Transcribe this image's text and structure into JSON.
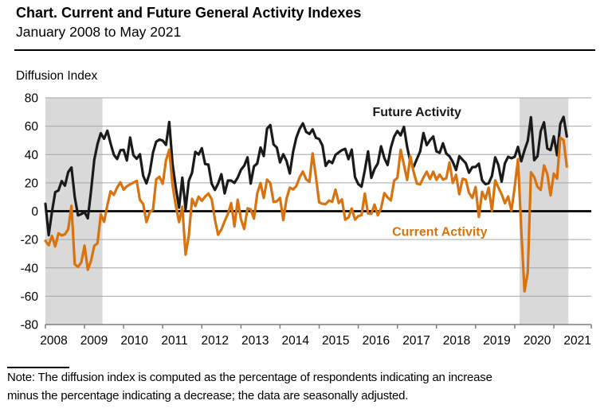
{
  "header": {
    "title": "Chart. Current and Future General Activity Indexes",
    "subtitle": "January 2008 to May 2021"
  },
  "note": {
    "line1": "Note: The diffusion index is computed as the percentage of respondents indicating an increase",
    "line2": "minus the percentage indicating a decrease; the data are seasonally adjusted."
  },
  "chart_data": {
    "type": "line",
    "title": "Current and Future General Activity Indexes",
    "ylabel": "Diffusion Index",
    "ylim": [
      -80,
      80
    ],
    "ytick_values": [
      80,
      60,
      40,
      20,
      0,
      -20,
      -40,
      -60,
      -80
    ],
    "year_labels": [
      "2008",
      "2009",
      "2010",
      "2011",
      "2012",
      "2013",
      "2014",
      "2015",
      "2016",
      "2017",
      "2018",
      "2019",
      "2020",
      "2021"
    ],
    "x_start": "2008-01",
    "x_frequency": "monthly",
    "x_axis_total_months": 167.5,
    "grid": "horizontal",
    "legend_position": "inline-annotations",
    "recession_bands_month_index": [
      [
        0,
        17.5
      ],
      [
        145.5,
        160.5
      ]
    ],
    "colors": {
      "band": "#d9d9d9",
      "grid": "#a6a6a6",
      "axis": "#7f7f7f",
      "zero_line": "#000000",
      "future": "#1a1a1a",
      "current": "#d9730f"
    },
    "series": [
      {
        "name": "Future Activity",
        "color": "#1a1a1a",
        "values": [
          5.2,
          -16.9,
          -0.5,
          13.4,
          14.7,
          21.3,
          18.0,
          27.6,
          30.8,
          10.0,
          -3.0,
          -2.0,
          -0.7,
          -5.0,
          14.5,
          36.2,
          47.5,
          55.0,
          51.1,
          56.8,
          47.8,
          39.8,
          36.8,
          43.0,
          43.3,
          35.8,
          52.0,
          39.5,
          37.0,
          40.2,
          25.0,
          19.6,
          27.3,
          41.4,
          49.0,
          50.5,
          49.8,
          46.8,
          63.0,
          33.6,
          16.6,
          2.5,
          23.7,
          1.4,
          21.4,
          27.2,
          41.9,
          40.0,
          44.4,
          33.3,
          32.9,
          19.5,
          15.0,
          19.5,
          26.1,
          12.5,
          21.6,
          21.6,
          20.0,
          23.7,
          29.2,
          32.1,
          38.0,
          19.5,
          31.6,
          33.7,
          44.9,
          38.9,
          58.2,
          60.8,
          47.1,
          44.9,
          34.4,
          40.2,
          35.4,
          26.6,
          41.9,
          52.0,
          58.1,
          62.0,
          56.0,
          54.5,
          57.7,
          51.9,
          50.9,
          46.4,
          32.0,
          35.5,
          33.9,
          39.7,
          41.5,
          43.1,
          44.0,
          36.7,
          43.4,
          24.1,
          19.1,
          17.3,
          28.8,
          42.2,
          23.6,
          29.8,
          33.7,
          45.8,
          37.5,
          32.6,
          44.8,
          52.6,
          56.6,
          53.5,
          59.5,
          45.4,
          34.8,
          31.3,
          36.9,
          42.3,
          55.2,
          46.6,
          50.1,
          52.7,
          42.2,
          41.2,
          47.9,
          40.7,
          38.7,
          34.8,
          29.0,
          38.8,
          36.3,
          33.8,
          27.2,
          31.1,
          31.2,
          33.5,
          21.8,
          19.1,
          19.7,
          24.8,
          38.0,
          32.6,
          20.8,
          33.8,
          38.4,
          37.4,
          38.4,
          45.4,
          35.2,
          43.0,
          49.7,
          66.3,
          36.0,
          38.8,
          56.6,
          62.7,
          44.3,
          43.1,
          52.8,
          39.5,
          61.6,
          66.6,
          52.7
        ]
      },
      {
        "name": "Current Activity",
        "color": "#d9730f",
        "values": [
          -20.9,
          -24.0,
          -17.4,
          -24.9,
          -15.6,
          -17.1,
          -16.3,
          -12.7,
          3.8,
          -37.5,
          -39.3,
          -36.1,
          -24.3,
          -41.3,
          -35.0,
          -24.4,
          -22.6,
          -2.2,
          -7.5,
          4.2,
          14.1,
          11.5,
          16.7,
          20.4,
          15.2,
          17.6,
          18.9,
          20.2,
          21.4,
          8.0,
          5.1,
          -7.7,
          -0.7,
          1.0,
          22.5,
          24.3,
          19.3,
          35.9,
          43.4,
          18.5,
          3.9,
          -7.7,
          3.2,
          -30.7,
          -17.5,
          8.7,
          3.6,
          10.3,
          7.3,
          10.2,
          12.5,
          8.5,
          -5.8,
          -16.6,
          -12.9,
          -7.1,
          -1.9,
          5.7,
          -10.7,
          8.1,
          -5.8,
          -12.5,
          2.0,
          1.3,
          -5.2,
          12.5,
          19.8,
          9.3,
          22.3,
          19.8,
          6.5,
          7.0,
          9.4,
          -6.3,
          9.0,
          16.6,
          15.4,
          17.8,
          23.9,
          28.0,
          22.5,
          20.7,
          40.8,
          24.5,
          6.3,
          5.2,
          5.0,
          7.5,
          6.7,
          15.2,
          5.7,
          8.3,
          -6.0,
          -4.5,
          1.9,
          -5.9,
          -3.5,
          -2.8,
          12.4,
          -1.6,
          -1.8,
          4.7,
          -2.9,
          2.0,
          12.8,
          9.7,
          7.6,
          21.5,
          23.6,
          43.3,
          32.8,
          22.0,
          38.8,
          27.6,
          19.5,
          18.9,
          23.8,
          27.9,
          22.7,
          27.9,
          22.2,
          25.8,
          22.3,
          23.2,
          34.4,
          19.9,
          25.7,
          11.9,
          22.9,
          22.2,
          12.9,
          9.4,
          17.0,
          -4.1,
          13.7,
          8.5,
          16.6,
          0.3,
          21.8,
          16.8,
          12.0,
          5.6,
          10.4,
          0.3,
          17.0,
          36.7,
          -12.7,
          -56.6,
          -43.1,
          27.5,
          24.1,
          17.2,
          15.0,
          32.3,
          26.3,
          11.1,
          26.5,
          23.1,
          51.8,
          50.2,
          31.5
        ]
      }
    ],
    "annotations": [
      {
        "text": "Future Activity",
        "x_month": 114,
        "y_value": 70,
        "color": "#1a1a1a"
      },
      {
        "text": "Current Activity",
        "x_month": 121,
        "y_value": -14.5,
        "color": "#d9730f"
      }
    ]
  }
}
